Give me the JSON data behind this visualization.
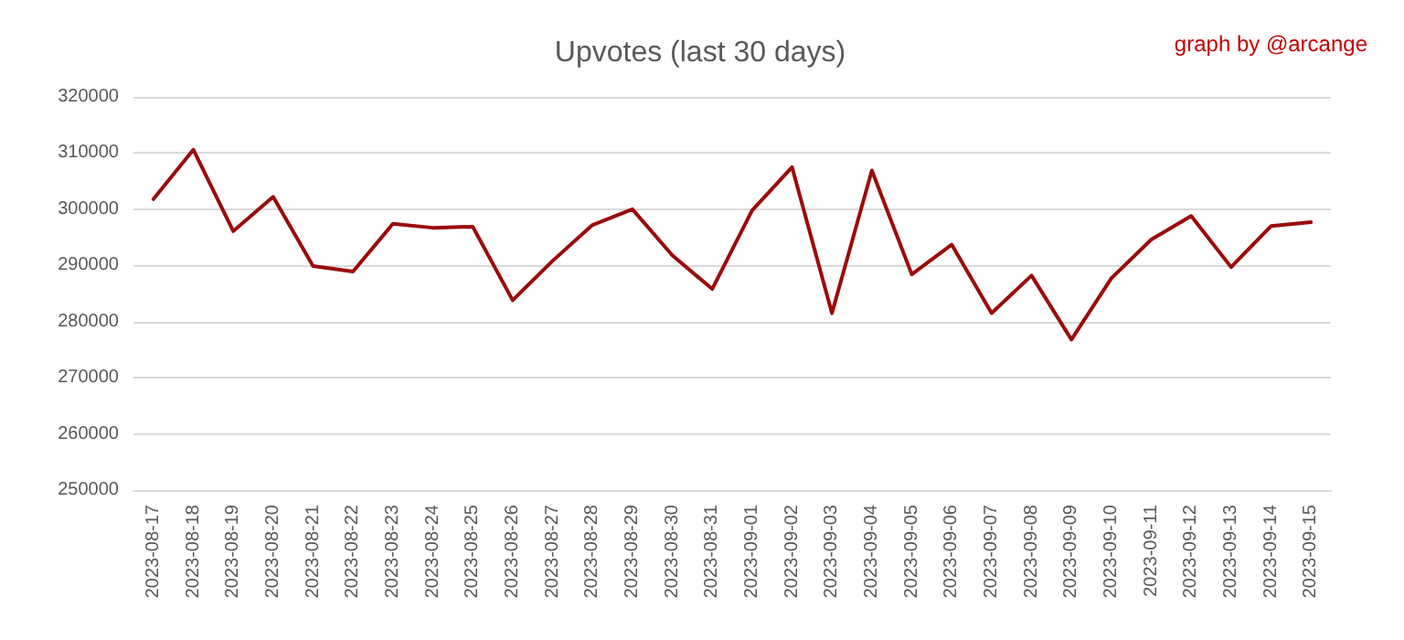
{
  "chart_data": {
    "type": "line",
    "title": "Upvotes (last 30 days)",
    "annotations": [
      "graph by @arcange"
    ],
    "categories": [
      "2023-08-17",
      "2023-08-18",
      "2023-08-19",
      "2023-08-20",
      "2023-08-21",
      "2023-08-22",
      "2023-08-23",
      "2023-08-24",
      "2023-08-25",
      "2023-08-26",
      "2023-08-27",
      "2023-08-28",
      "2023-08-29",
      "2023-08-30",
      "2023-08-31",
      "2023-09-01",
      "2023-09-02",
      "2023-09-03",
      "2023-09-04",
      "2023-09-05",
      "2023-09-06",
      "2023-09-07",
      "2023-09-08",
      "2023-09-09",
      "2023-09-10",
      "2023-09-11",
      "2023-09-12",
      "2023-09-13",
      "2023-09-14",
      "2023-09-15"
    ],
    "series": [
      {
        "color": "#9b0a0a",
        "values": [
          301800,
          310600,
          296100,
          302200,
          289900,
          288900,
          297400,
          296700,
          296900,
          283800,
          290800,
          297200,
          300000,
          291800,
          285800,
          299800,
          307500,
          281500,
          306900,
          288400,
          293700,
          281500,
          288200,
          276800,
          287700,
          294600,
          298800,
          289700,
          297000,
          297700
        ]
      }
    ],
    "ylim": [
      250000,
      320000
    ],
    "yticks": [
      250000,
      260000,
      270000,
      280000,
      290000,
      300000,
      310000,
      320000
    ],
    "grid": "y",
    "marker": "none",
    "line_style": "solid"
  }
}
